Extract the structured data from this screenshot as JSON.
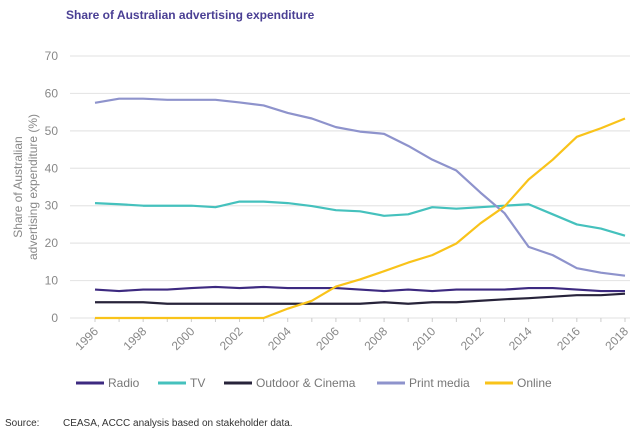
{
  "chart_data": {
    "type": "line",
    "title": "Share of Australian advertising expenditure",
    "xlabel": "",
    "ylabel": "Share of Australian advertising expenditure (%)",
    "ylim": [
      0,
      70
    ],
    "yticks": [
      0,
      10,
      20,
      30,
      40,
      50,
      60,
      70
    ],
    "xticks": [
      1996,
      1998,
      2000,
      2002,
      2004,
      2006,
      2008,
      2010,
      2012,
      2014,
      2016,
      2018
    ],
    "grid": true,
    "legend": "bottom",
    "x": [
      1996,
      1997,
      1998,
      1999,
      2000,
      2001,
      2002,
      2003,
      2004,
      2005,
      2006,
      2007,
      2008,
      2009,
      2010,
      2011,
      2012,
      2013,
      2014,
      2015,
      2016,
      2017,
      2018
    ],
    "series": [
      {
        "name": "Radio",
        "color": "#3d2a80",
        "values": [
          7.6,
          7.2,
          7.6,
          7.6,
          8,
          8.3,
          8,
          8.3,
          8,
          8,
          8,
          7.6,
          7.2,
          7.6,
          7.2,
          7.6,
          7.6,
          7.6,
          8,
          8,
          7.6,
          7.2,
          7.2
        ]
      },
      {
        "name": "TV",
        "color": "#45c1bd",
        "values": [
          30.7,
          30.4,
          30,
          30,
          30,
          29.6,
          31.1,
          31.1,
          30.7,
          29.9,
          28.8,
          28.5,
          27.3,
          27.7,
          29.6,
          29.2,
          29.6,
          30,
          30.4,
          27.7,
          25,
          23.9,
          22
        ]
      },
      {
        "name": "Outdoor & Cinema",
        "color": "#27233a",
        "values": [
          4.2,
          4.2,
          4.2,
          3.8,
          3.8,
          3.8,
          3.8,
          3.8,
          3.8,
          3.8,
          3.8,
          3.8,
          4.2,
          3.8,
          4.2,
          4.2,
          4.6,
          5,
          5.3,
          5.7,
          6.1,
          6.1,
          6.5
        ]
      },
      {
        "name": "Print media",
        "color": "#8e93cc",
        "values": [
          57.5,
          58.6,
          58.6,
          58.3,
          58.3,
          58.3,
          57.6,
          56.8,
          54.8,
          53.3,
          51,
          49.8,
          49.2,
          46,
          42.3,
          39.4,
          33.5,
          28,
          19,
          16.8,
          13.3,
          12.1,
          11.3
        ]
      },
      {
        "name": "Online",
        "color": "#f9c31a",
        "values": [
          0,
          0,
          0,
          0,
          0,
          0,
          0,
          0,
          2.5,
          4.6,
          8.4,
          10.3,
          12.5,
          14.8,
          16.8,
          19.9,
          25.3,
          29.8,
          37,
          42.3,
          48.4,
          50.7,
          53.3
        ]
      }
    ]
  },
  "source": {
    "label": "Source:",
    "text": "CEASA, ACCC analysis based on stakeholder data."
  }
}
